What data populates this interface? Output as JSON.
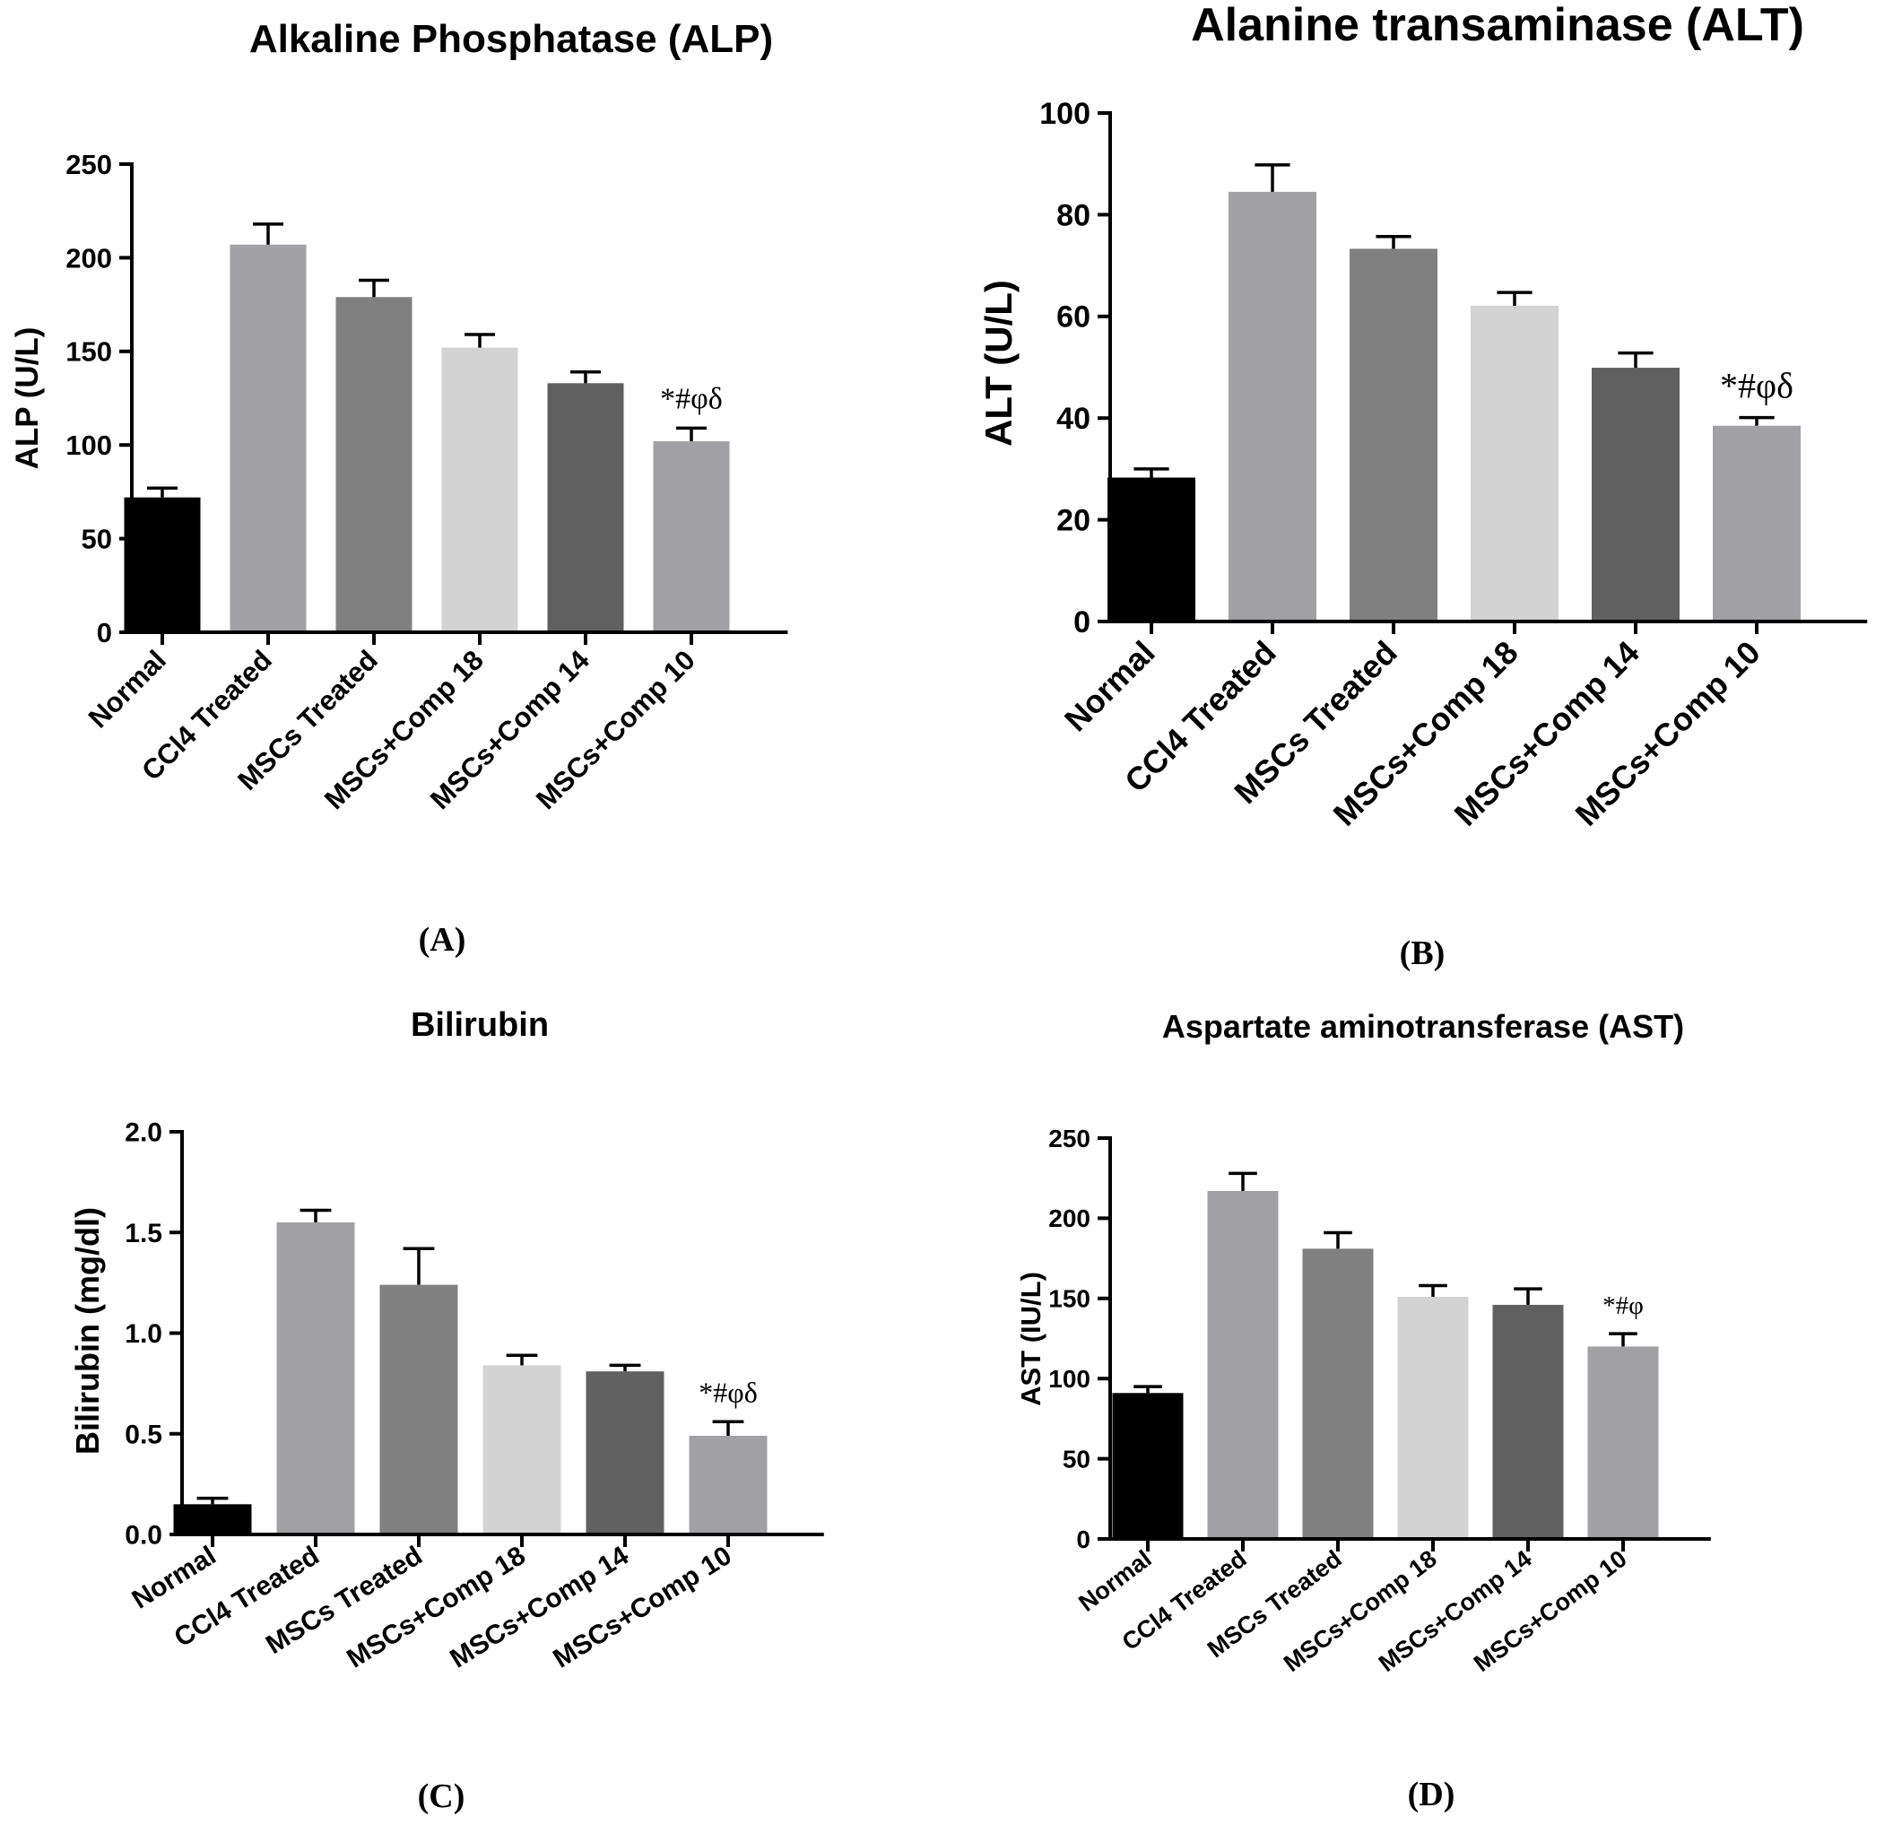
{
  "chart_data": [
    {
      "type": "bar",
      "panel_label": "(A)",
      "title": "Alkaline Phosphatase (ALP)",
      "ylabel": "ALP (U/L)",
      "xlabel": "",
      "ylim": [
        0,
        250
      ],
      "yticks": [
        0,
        50,
        100,
        150,
        200,
        250
      ],
      "ytick_labels": [
        "0",
        "50",
        "100",
        "150",
        "200",
        "250"
      ],
      "categories": [
        "Normal",
        "CCl4 Treated",
        "MSCs Treated",
        "MSCs+Comp 18",
        "MSCs+Comp 14",
        "MSCs+Comp 10"
      ],
      "values": [
        72,
        207,
        179,
        152,
        133,
        102
      ],
      "errors": [
        5,
        11,
        9,
        7,
        6,
        7
      ],
      "colors": [
        "#000000",
        "#a1a1a5",
        "#808080",
        "#d3d3d3",
        "#606060",
        "#a1a1a5"
      ],
      "annotation": {
        "text": "*#φδ",
        "category_index": 5
      }
    },
    {
      "type": "bar",
      "panel_label": "(B)",
      "title": "Alanine transaminase (ALT)",
      "ylabel": "ALT (U/L)",
      "xlabel": "",
      "ylim": [
        0,
        100
      ],
      "yticks": [
        0,
        20,
        40,
        60,
        80,
        100
      ],
      "ytick_labels": [
        "0",
        "20",
        "40",
        "60",
        "80",
        "100"
      ],
      "categories": [
        "Normal",
        "CCl4 Treated",
        "MSCs Treated",
        "MSCs+Comp 18",
        "MSCs+Comp 14",
        "MSCs+Comp 10"
      ],
      "values": [
        28.3,
        84.5,
        73.3,
        62.1,
        49.9,
        38.5
      ],
      "errors": [
        1.7,
        5.3,
        2.4,
        2.6,
        2.9,
        1.6
      ],
      "colors": [
        "#000000",
        "#a1a1a5",
        "#808080",
        "#d3d3d3",
        "#606060",
        "#a1a1a5"
      ],
      "annotation": {
        "text": "*#φδ",
        "category_index": 5
      }
    },
    {
      "type": "bar",
      "panel_label": "(C)",
      "title": "Bilirubin",
      "ylabel": "Bilirubin (mg/dl)",
      "xlabel": "",
      "ylim": [
        0,
        2.0
      ],
      "yticks": [
        0,
        0.5,
        1.0,
        1.5,
        2.0
      ],
      "ytick_labels": [
        "0.0",
        "0.5",
        "1.0",
        "1.5",
        "2.0"
      ],
      "categories": [
        "Normal",
        "CCl4 Treated",
        "MSCs Treated",
        "MSCs+Comp 18",
        "MSCs+Comp 14",
        "MSCs+Comp 10"
      ],
      "values": [
        0.15,
        1.55,
        1.24,
        0.84,
        0.81,
        0.49
      ],
      "errors": [
        0.03,
        0.06,
        0.18,
        0.05,
        0.03,
        0.07
      ],
      "colors": [
        "#000000",
        "#a1a1a5",
        "#808080",
        "#d3d3d3",
        "#606060",
        "#a1a1a5"
      ],
      "annotation": {
        "text": "*#φδ",
        "category_index": 5
      }
    },
    {
      "type": "bar",
      "panel_label": "(D)",
      "title": "Aspartate aminotransferase (AST)",
      "ylabel": "AST (IU/L)",
      "xlabel": "",
      "ylim": [
        0,
        250
      ],
      "yticks": [
        0,
        50,
        100,
        150,
        200,
        250
      ],
      "ytick_labels": [
        "0",
        "50",
        "100",
        "150",
        "200",
        "250"
      ],
      "categories": [
        "Normal",
        "CCl4 Treated",
        "MSCs Treated",
        "MSCs+Comp 18",
        "MSCs+Comp 14",
        "MSCs+Comp 10"
      ],
      "values": [
        91,
        217,
        181,
        151,
        146,
        120
      ],
      "errors": [
        4,
        11,
        10,
        7,
        10,
        8
      ],
      "colors": [
        "#000000",
        "#a1a1a5",
        "#808080",
        "#d3d3d3",
        "#606060",
        "#a1a1a5"
      ],
      "annotation": {
        "text": "*#φ",
        "category_index": 5
      }
    }
  ]
}
